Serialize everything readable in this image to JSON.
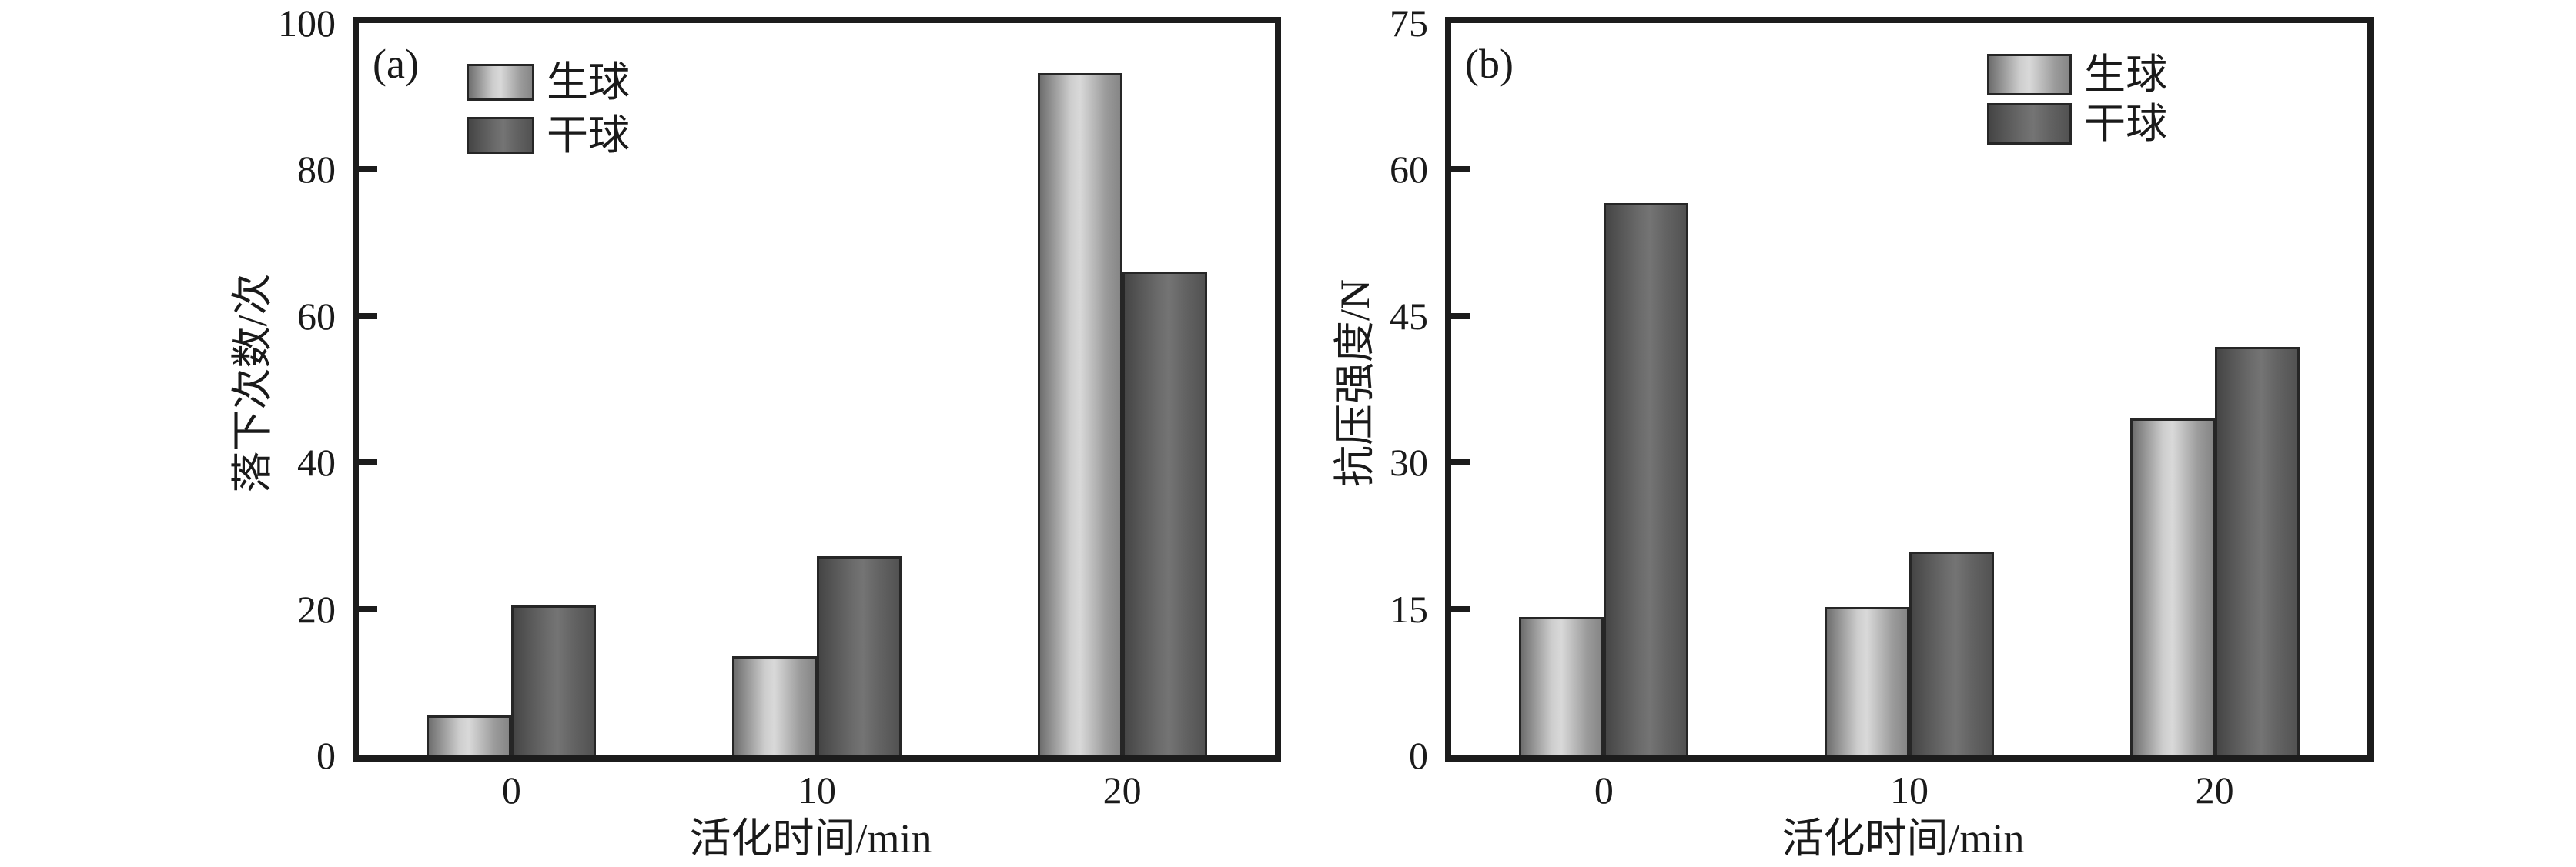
{
  "figure": {
    "background": "#ffffff",
    "text_color": "#1a1a1a",
    "axis_color": "#1c1c1c",
    "series_styles": [
      {
        "name": "生球",
        "center_color": "#d9d9d9",
        "edge_color": "#6e6e6e"
      },
      {
        "name": "干球",
        "center_color": "#747474",
        "edge_color": "#454545"
      }
    ]
  },
  "chart_data": [
    {
      "type": "bar",
      "panel_label": "(a)",
      "xlabel": "活化时间/min",
      "ylabel": "落下次数/次",
      "categories": [
        "0",
        "10",
        "20"
      ],
      "series": [
        {
          "name": "生球",
          "values": [
            5.5,
            13.5,
            93.2
          ]
        },
        {
          "name": "干球",
          "values": [
            20.5,
            27.2,
            66.1
          ]
        }
      ],
      "ylim": [
        0,
        100
      ],
      "yticks": [
        0,
        20,
        40,
        60,
        80,
        100
      ],
      "legend_position": "upper left inside",
      "grid": false
    },
    {
      "type": "bar",
      "panel_label": "(b)",
      "xlabel": "活化时间/min",
      "ylabel": "抗压强度/N",
      "categories": [
        "0",
        "10",
        "20"
      ],
      "series": [
        {
          "name": "生球",
          "values": [
            14.2,
            15.2,
            34.5
          ]
        },
        {
          "name": "干球",
          "values": [
            56.6,
            20.9,
            41.8
          ]
        }
      ],
      "ylim": [
        0,
        75
      ],
      "yticks": [
        0,
        15,
        30,
        45,
        60,
        75
      ],
      "legend_position": "upper right inside",
      "grid": false
    }
  ]
}
